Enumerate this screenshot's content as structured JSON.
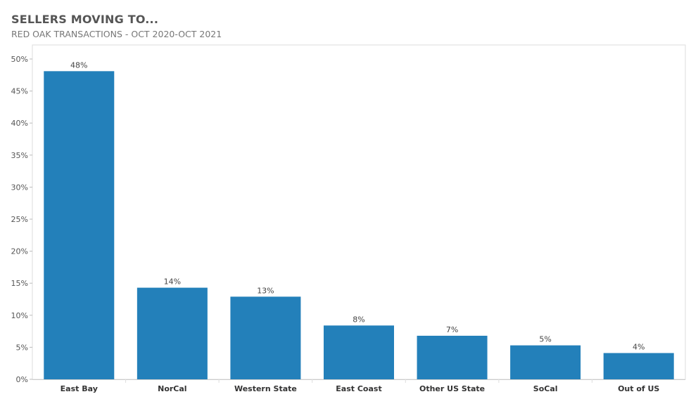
{
  "chart_data": {
    "type": "bar",
    "title": "SELLERS MOVING TO...",
    "subtitle": "RED OAK TRANSACTIONS - OCT 2020-OCT 2021",
    "xlabel": "",
    "ylabel": "",
    "categories": [
      "East Bay",
      "NorCal",
      "Western State",
      "East Coast",
      "Other US State",
      "SoCal",
      "Out of US"
    ],
    "values": [
      48.1,
      14.3,
      12.9,
      8.4,
      6.8,
      5.3,
      4.1
    ],
    "data_labels": [
      "48%",
      "14%",
      "13%",
      "8%",
      "7%",
      "5%",
      "4%"
    ],
    "ylim": [
      0,
      52
    ],
    "yticks": [
      0,
      5,
      10,
      15,
      20,
      25,
      30,
      35,
      40,
      45,
      50
    ],
    "ytick_labels": [
      "0%",
      "5%",
      "10%",
      "15%",
      "20%",
      "25%",
      "30%",
      "35%",
      "40%",
      "45%",
      "50%"
    ],
    "bar_color": "#2380BA",
    "grid": false
  }
}
